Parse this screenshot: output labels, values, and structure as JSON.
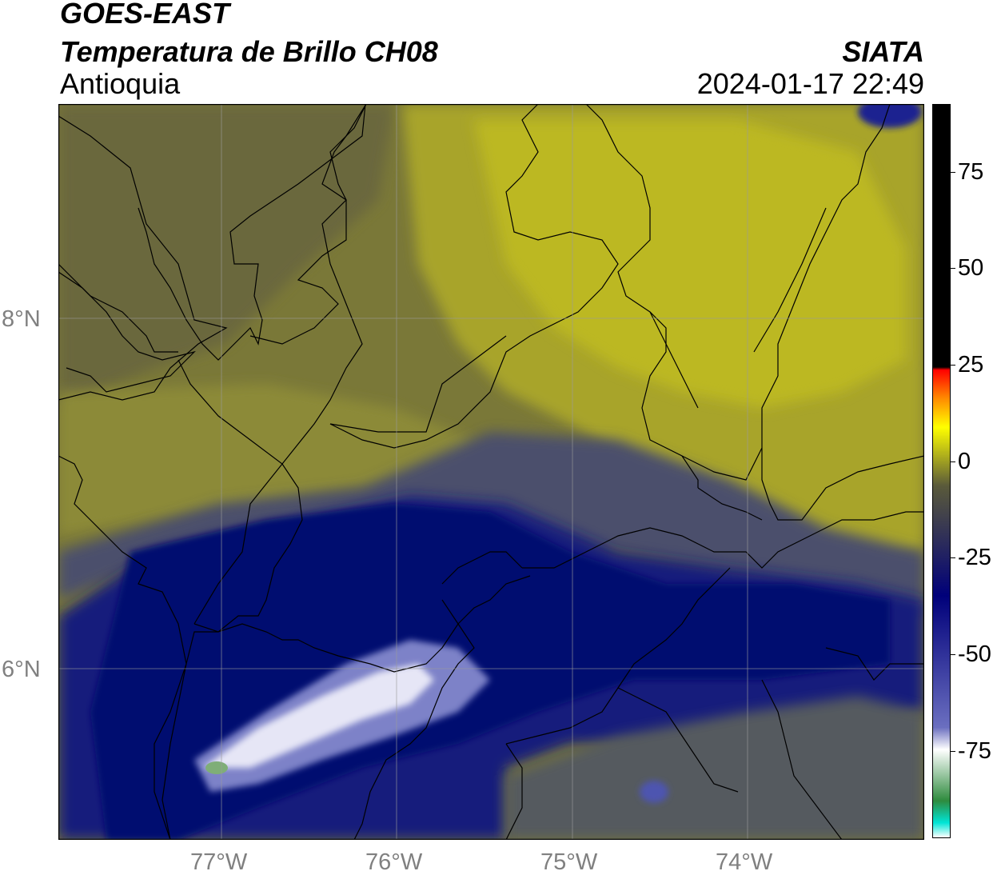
{
  "header": {
    "title": "GOES-EAST",
    "subtitle": "Temperatura de Brillo CH08",
    "region": "Antioquia",
    "organization": "SIATA",
    "datetime": "2024-01-17 22:49"
  },
  "axes": {
    "lat_labels": [
      "8°N",
      "6°N"
    ],
    "lon_labels": [
      "77°W",
      "76°W",
      "75°W",
      "74°W"
    ]
  },
  "colorbar": {
    "tick_labels": [
      "75",
      "50",
      "25",
      "0",
      "-25",
      "-50",
      "-75"
    ],
    "colors": [
      "#ffffff",
      "#00e5d6",
      "#2e8b3e",
      "#ffffff",
      "#6b6fc0",
      "#00007a",
      "#5a5a3a",
      "#ffff00",
      "#ff8800",
      "#ff0000",
      "#000000"
    ]
  },
  "map_colors": {
    "olive_dark": "#6e6c3c",
    "olive": "#8a8838",
    "yellow": "#bcb826",
    "gray_blue": "#4a4f6e",
    "navy": "#14197a",
    "deep_navy": "#050a6e",
    "lavender": "#8a8fd0",
    "white_core": "#f2f2fa"
  }
}
